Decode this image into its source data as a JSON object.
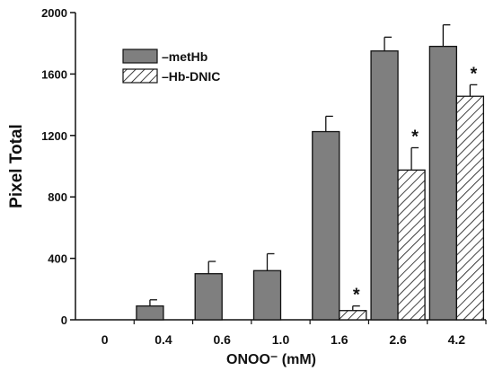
{
  "chart_data": {
    "type": "bar",
    "xlabel": "ONOO⁻ (mM)",
    "ylabel": "Pixel Total",
    "ylim": [
      0,
      2000
    ],
    "yticks": [
      0,
      400,
      800,
      1200,
      1600,
      2000
    ],
    "categories": [
      "0",
      "0.4",
      "0.6",
      "1.0",
      "1.6",
      "2.6",
      "4.2"
    ],
    "series": [
      {
        "name": "metHb",
        "fill": "gray",
        "values": [
          0,
          90,
          300,
          320,
          1225,
          1750,
          1780
        ],
        "errors": [
          0,
          40,
          80,
          110,
          100,
          90,
          140
        ]
      },
      {
        "name": "Hb-DNIC",
        "fill": "hatched",
        "values": [
          0,
          0,
          0,
          0,
          60,
          975,
          1455
        ],
        "errors": [
          0,
          0,
          0,
          0,
          30,
          145,
          75
        ],
        "significance": [
          "",
          "",
          "",
          "",
          "*",
          "*",
          "*"
        ]
      }
    ],
    "legend": {
      "position": "top-left",
      "entries": [
        "–metHb",
        "–Hb-DNIC"
      ]
    },
    "colors": {
      "gray_bar": "#7f7f7f",
      "axis": "#111111"
    }
  }
}
